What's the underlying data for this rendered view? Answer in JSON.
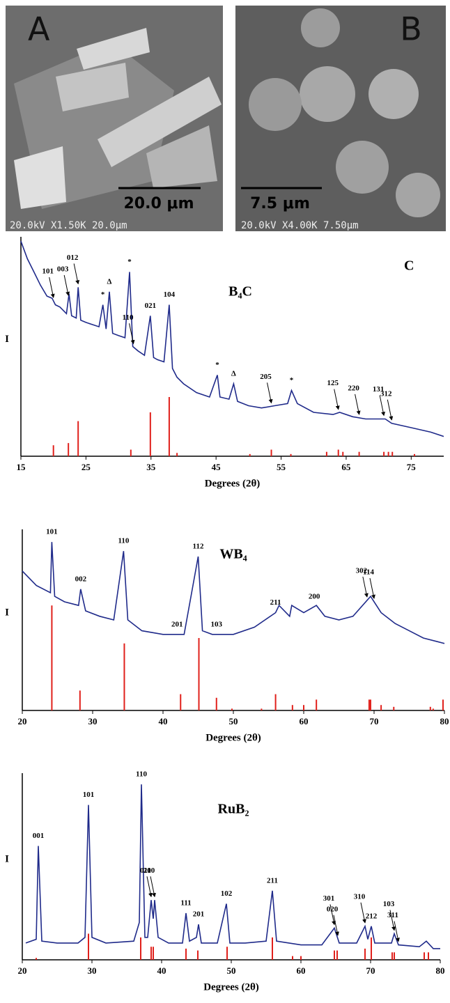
{
  "images": [
    {
      "label": "A",
      "scale_bar": "20.0 μm",
      "info": "20.0kV X1.50K 20.0μm"
    },
    {
      "label": "B",
      "scale_bar": "7.5 μm",
      "info": "20.0kV X4.00K 7.50μm"
    }
  ],
  "chart_data": [
    {
      "type": "line",
      "title": "B₄C",
      "panel_label": "C",
      "y_label": "I",
      "x_label": "Degrees (2θ)",
      "xlim": [
        15,
        80
      ],
      "xticks": [
        15,
        25,
        35,
        45,
        55,
        65,
        75
      ],
      "ylim": [
        0,
        100
      ],
      "series": [
        {
          "color": "#1f2a8a",
          "x": [
            15,
            16,
            17,
            18,
            19,
            19.8,
            20.3,
            21,
            22,
            22.4,
            22.8,
            23.5,
            23.8,
            24.2,
            25,
            26,
            27,
            27.6,
            28.1,
            28.6,
            29.1,
            30,
            31,
            31.7,
            32.2,
            33,
            34,
            34.9,
            35.4,
            36,
            37,
            37.8,
            38.3,
            39,
            40,
            42,
            44,
            45.2,
            45.6,
            47,
            47.7,
            48.3,
            50,
            52,
            54,
            56,
            56.6,
            57.5,
            60,
            63,
            64,
            66,
            68,
            70,
            71,
            72,
            75,
            78,
            80
          ],
          "values": [
            98,
            90,
            84,
            78,
            73,
            72,
            69,
            68,
            65,
            74,
            64,
            63,
            77,
            62,
            61,
            60,
            59,
            69,
            58,
            75,
            56,
            55,
            54,
            84,
            50,
            48,
            46,
            64,
            45,
            44,
            43,
            69,
            40,
            36,
            33,
            29,
            27,
            37,
            27,
            26,
            33,
            25,
            23,
            22,
            23,
            24,
            30,
            24,
            20,
            19,
            20,
            18,
            17,
            17,
            17,
            15,
            13,
            11,
            9
          ]
        },
        {
          "color": "#e0201b",
          "style": "stem",
          "x": [
            20,
            22.3,
            23.8,
            31.9,
            34.9,
            37.8,
            39,
            50.2,
            53.5,
            56.5,
            62,
            63.8,
            64.5,
            67,
            70.8,
            71.5,
            72.1,
            75.5
          ],
          "values": [
            5,
            6,
            16,
            3,
            20,
            27,
            1.5,
            1,
            3,
            1,
            2,
            3,
            2,
            2,
            2,
            2,
            2,
            1
          ]
        }
      ],
      "annotations": [
        {
          "label": "101",
          "x": 20,
          "arrow": true
        },
        {
          "label": "003",
          "x": 22.3,
          "arrow": true
        },
        {
          "label": "012",
          "x": 23.8,
          "arrow": true
        },
        {
          "label": "*",
          "x": 27.6,
          "arrow": false
        },
        {
          "label": "Δ",
          "x": 28.6,
          "arrow": false
        },
        {
          "label": "*",
          "x": 31.7,
          "arrow": false
        },
        {
          "label": "110",
          "x": 32.3,
          "arrow": true
        },
        {
          "label": "021",
          "x": 34.9,
          "arrow": false
        },
        {
          "label": "104",
          "x": 37.8,
          "arrow": false
        },
        {
          "label": "*",
          "x": 45.2,
          "arrow": false
        },
        {
          "label": "Δ",
          "x": 47.7,
          "arrow": false
        },
        {
          "label": "205",
          "x": 53.5,
          "arrow": true
        },
        {
          "label": "*",
          "x": 56.6,
          "arrow": false
        },
        {
          "label": "125",
          "x": 63.8,
          "arrow": true
        },
        {
          "label": "220",
          "x": 67,
          "arrow": true
        },
        {
          "label": "131",
          "x": 70.8,
          "arrow": true
        },
        {
          "label": "312",
          "x": 72,
          "arrow": true
        }
      ]
    },
    {
      "type": "line",
      "title": "WB₄",
      "y_label": "I",
      "x_label": "Degrees (2θ)",
      "xlim": [
        20,
        80
      ],
      "xticks": [
        20,
        30,
        40,
        50,
        60,
        70,
        80
      ],
      "ylim": [
        0,
        100
      ],
      "series": [
        {
          "color": "#1f2a8a",
          "x": [
            20,
            22,
            24,
            24.2,
            24.6,
            26,
            28,
            28.3,
            29,
            31,
            33,
            34.4,
            35,
            37,
            40,
            43,
            45,
            45.6,
            47,
            50,
            53,
            56,
            56.5,
            58,
            58.3,
            60,
            61.8,
            63,
            65,
            67,
            69.5,
            71,
            73,
            75,
            77,
            79,
            80
          ],
          "values": [
            77,
            69,
            65,
            93,
            63,
            60,
            58,
            67,
            55,
            52,
            50,
            88,
            50,
            44,
            42,
            42,
            85,
            44,
            42,
            42,
            46,
            54,
            58,
            52,
            58,
            54,
            58,
            52,
            50,
            52,
            63,
            54,
            48,
            44,
            40,
            38,
            37
          ]
        },
        {
          "color": "#e0201b",
          "style": "stem",
          "x": [
            24.2,
            28.2,
            34.5,
            42.5,
            45.1,
            47.6,
            49.8,
            54,
            56,
            58.4,
            60,
            61.8,
            69.3,
            69.5,
            71,
            72.8,
            78,
            78.4,
            79.8
          ],
          "values": [
            58,
            11,
            37,
            9,
            40,
            7,
            1,
            1,
            9,
            3,
            3,
            6,
            6,
            6,
            3,
            2,
            2,
            1,
            6
          ]
        }
      ],
      "annotations": [
        {
          "label": "101",
          "x": 24.2,
          "arrow": false
        },
        {
          "label": "002",
          "x": 28.3,
          "arrow": false
        },
        {
          "label": "110",
          "x": 34.4,
          "arrow": false
        },
        {
          "label": "201",
          "x": 42,
          "arrow": false
        },
        {
          "label": "112",
          "x": 45,
          "arrow": false
        },
        {
          "label": "103",
          "x": 47.6,
          "arrow": false
        },
        {
          "label": "211",
          "x": 56,
          "arrow": false
        },
        {
          "label": "200",
          "x": 61.5,
          "arrow": false
        },
        {
          "label": "302",
          "x": 69,
          "arrow": true
        },
        {
          "label": "114",
          "x": 70,
          "arrow": true
        }
      ]
    },
    {
      "type": "line",
      "title": "RuB₂",
      "y_label": "I",
      "x_label": "Degrees (2θ)",
      "xlim": [
        20,
        80
      ],
      "xticks": [
        20,
        30,
        40,
        50,
        60,
        70,
        80
      ],
      "ylim": [
        0,
        100
      ],
      "series": [
        {
          "color": "#1f2a8a",
          "x": [
            20.5,
            22,
            22.3,
            22.8,
            25,
            28,
            29,
            29.5,
            30,
            32,
            36,
            36.8,
            37.1,
            37.6,
            38,
            38.5,
            38.8,
            39,
            39.5,
            41,
            43,
            43.5,
            44,
            45,
            45.3,
            45.7,
            48,
            49.3,
            49.8,
            52,
            55,
            55.9,
            56.5,
            60,
            63,
            64.8,
            65.5,
            68,
            69.2,
            69.6,
            70.1,
            70.6,
            73,
            73.4,
            74,
            77,
            78,
            79,
            80
          ],
          "values": [
            9,
            11,
            61,
            10,
            9,
            9,
            12,
            83,
            12,
            9,
            10,
            20,
            94,
            12,
            12,
            32,
            22,
            32,
            12,
            9,
            9,
            25,
            10,
            12,
            19,
            9,
            9,
            30,
            9,
            9,
            10,
            37,
            10,
            8,
            8,
            17,
            9,
            9,
            18,
            11,
            18,
            9,
            9,
            14,
            8,
            7,
            10,
            6,
            6
          ]
        },
        {
          "color": "#e0201b",
          "style": "stem",
          "x": [
            22,
            29.5,
            37,
            38.5,
            38.8,
            43.5,
            45.2,
            49.4,
            55.9,
            58.8,
            60,
            64.8,
            65.2,
            69.2,
            70.1,
            73.1,
            73.4,
            77.7,
            78.3
          ],
          "values": [
            1,
            14,
            12,
            7,
            7,
            6,
            5,
            7,
            12,
            2,
            2,
            5,
            5,
            6,
            12,
            4,
            4,
            4,
            4
          ]
        }
      ],
      "annotations": [
        {
          "label": "001",
          "x": 22.3,
          "arrow": false
        },
        {
          "label": "101",
          "x": 29.5,
          "arrow": false
        },
        {
          "label": "110",
          "x": 37.1,
          "arrow": false
        },
        {
          "label": "011",
          "x": 38.5,
          "arrow": true
        },
        {
          "label": "200",
          "x": 39,
          "arrow": true
        },
        {
          "label": "111",
          "x": 43.5,
          "arrow": false
        },
        {
          "label": "201",
          "x": 45.3,
          "arrow": false
        },
        {
          "label": "102",
          "x": 49.3,
          "arrow": false
        },
        {
          "label": "211",
          "x": 55.9,
          "arrow": false
        },
        {
          "label": "301",
          "x": 64.8,
          "arrow": true
        },
        {
          "label": "020",
          "x": 65.3,
          "arrow": true
        },
        {
          "label": "310",
          "x": 69.2,
          "arrow": true
        },
        {
          "label": "212",
          "x": 70.1,
          "arrow": false
        },
        {
          "label": "103",
          "x": 73.4,
          "arrow": true
        },
        {
          "label": "311",
          "x": 74,
          "arrow": true
        }
      ]
    }
  ]
}
